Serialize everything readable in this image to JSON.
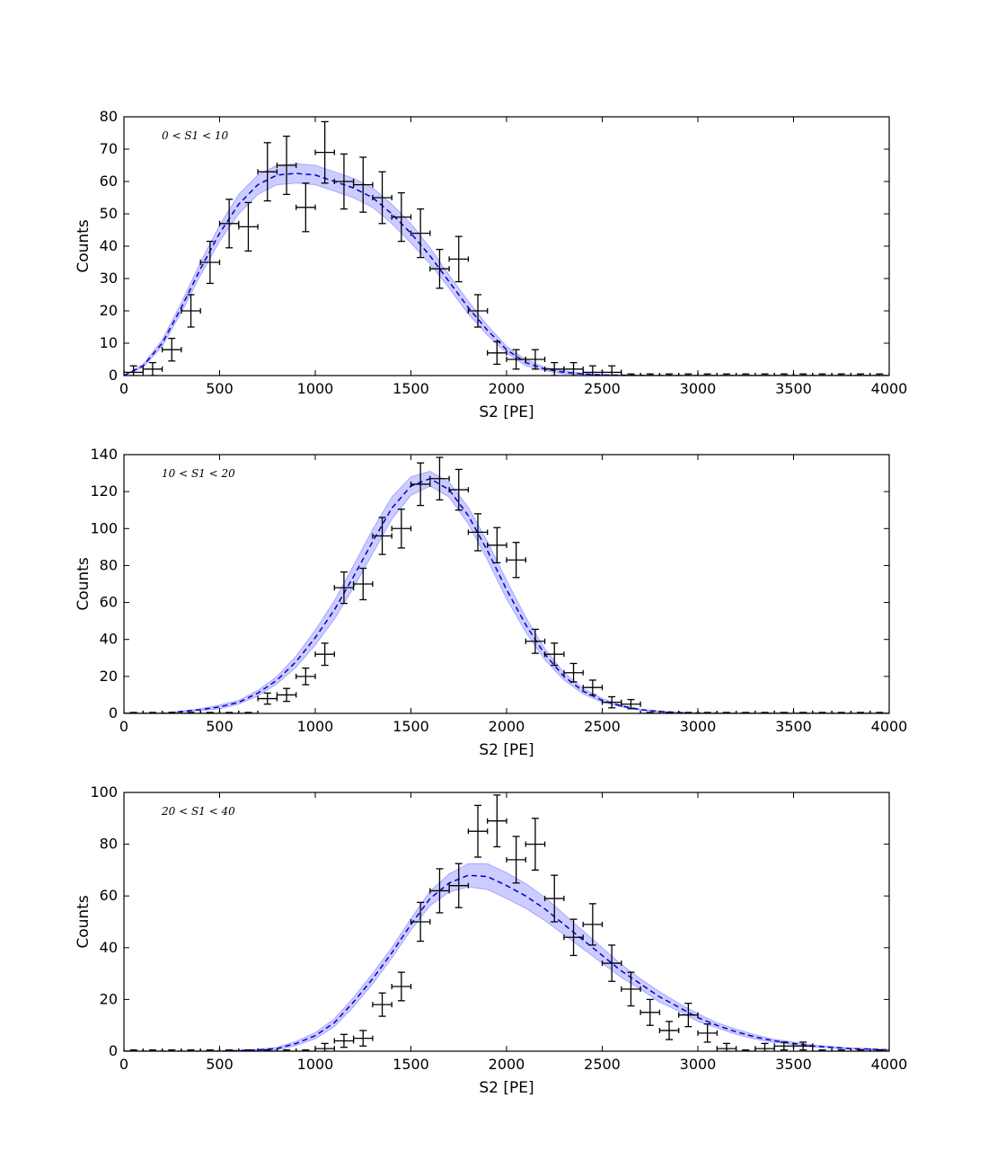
{
  "chart_data": [
    {
      "type": "scatter",
      "annotation": "0 < S1 < 10",
      "xlabel": "S2 [PE]",
      "ylabel": "Counts",
      "xlim": [
        0,
        4000
      ],
      "ylim": [
        0,
        80
      ],
      "xticks": [
        0,
        500,
        1000,
        1500,
        2000,
        2500,
        3000,
        3500,
        4000
      ],
      "yticks": [
        0,
        10,
        20,
        30,
        40,
        50,
        60,
        70,
        80
      ],
      "bin_width": 100,
      "colors": {
        "band": "#8080ff",
        "model": "#0000cc",
        "data": "#000000"
      },
      "data_points": {
        "x": [
          50,
          150,
          250,
          350,
          450,
          550,
          650,
          750,
          850,
          950,
          1050,
          1150,
          1250,
          1350,
          1450,
          1550,
          1650,
          1750,
          1850,
          1950,
          2050,
          2150,
          2250,
          2350,
          2450,
          2550,
          2650,
          2750,
          2850,
          2950,
          3050,
          3150,
          3250,
          3350,
          3450,
          3550,
          3650,
          3750,
          3850,
          3950
        ],
        "y": [
          1,
          2,
          8,
          20,
          35,
          47,
          46,
          63,
          65,
          52,
          69,
          60,
          59,
          55,
          49,
          44,
          33,
          36,
          20,
          7,
          5,
          5,
          2,
          2,
          1,
          1,
          0,
          0,
          0,
          0,
          0,
          0,
          0,
          0,
          0,
          0,
          0,
          0,
          0,
          0
        ],
        "yerr": [
          2,
          2,
          3.5,
          5,
          6.5,
          7.5,
          7.5,
          9,
          9,
          7.5,
          9.5,
          8.5,
          8.5,
          8,
          7.5,
          7.5,
          6,
          7,
          5,
          3.5,
          3,
          3,
          2,
          2,
          2,
          2,
          0.5,
          0.5,
          0.5,
          0.5,
          0.5,
          0.5,
          0.5,
          0.5,
          0.5,
          0.5,
          0.5,
          0.5,
          0.5,
          0.5
        ]
      },
      "model": {
        "x": [
          0,
          100,
          200,
          300,
          400,
          500,
          600,
          700,
          800,
          900,
          1000,
          1100,
          1200,
          1300,
          1400,
          1500,
          1600,
          1700,
          1800,
          1900,
          2000,
          2100,
          2200,
          2300,
          2400,
          2500,
          2600,
          2700,
          2800,
          2900,
          3000,
          3500,
          4000
        ],
        "y": [
          0,
          3,
          10,
          21,
          33,
          44,
          53,
          59,
          62,
          62.5,
          62,
          60,
          58,
          55,
          50,
          44,
          37,
          29,
          21,
          14,
          8,
          4,
          2,
          1,
          0.5,
          0.2,
          0.1,
          0.05,
          0,
          0,
          0,
          0,
          0
        ],
        "band": [
          0,
          0.5,
          1,
          1.5,
          2,
          2.5,
          3,
          3,
          3,
          3,
          3,
          3,
          3,
          3,
          3,
          3,
          2.5,
          2,
          2,
          1.5,
          1,
          1,
          0.5,
          0.5,
          0.2,
          0.1,
          0.1,
          0,
          0,
          0,
          0,
          0,
          0
        ]
      }
    },
    {
      "type": "scatter",
      "annotation": "10 < S1 < 20",
      "xlabel": "S2 [PE]",
      "ylabel": "Counts",
      "xlim": [
        0,
        4000
      ],
      "ylim": [
        0,
        140
      ],
      "xticks": [
        0,
        500,
        1000,
        1500,
        2000,
        2500,
        3000,
        3500,
        4000
      ],
      "yticks": [
        0,
        20,
        40,
        60,
        80,
        100,
        120,
        140
      ],
      "bin_width": 100,
      "colors": {
        "band": "#8080ff",
        "model": "#0000cc",
        "data": "#000000"
      },
      "data_points": {
        "x": [
          50,
          150,
          250,
          350,
          450,
          550,
          650,
          750,
          850,
          950,
          1050,
          1150,
          1250,
          1350,
          1450,
          1550,
          1650,
          1750,
          1850,
          1950,
          2050,
          2150,
          2250,
          2350,
          2450,
          2550,
          2650,
          2750,
          2850,
          2950,
          3050,
          3150,
          3250,
          3350,
          3450,
          3550,
          3650,
          3750,
          3850,
          3950
        ],
        "y": [
          0,
          0,
          0,
          0,
          0,
          0,
          0,
          8,
          10,
          20,
          32,
          68,
          70,
          96,
          100,
          124,
          127,
          121,
          98,
          91,
          83,
          39,
          32,
          22,
          14,
          6,
          5,
          0,
          0,
          0,
          0,
          0,
          0,
          0,
          0,
          0,
          0,
          0,
          0,
          0
        ],
        "yerr": [
          0.5,
          0.5,
          0.5,
          0.5,
          0.5,
          0.5,
          0.5,
          3,
          3.5,
          4.5,
          6,
          8.5,
          8.5,
          10,
          10.5,
          11.5,
          11.5,
          11,
          10,
          9.5,
          9.5,
          6.5,
          6,
          5,
          4,
          3,
          2.5,
          0.5,
          0.5,
          0.5,
          0.5,
          0.5,
          0.5,
          0.5,
          0.5,
          0.5,
          0.5,
          0.5,
          0.5,
          0.5
        ]
      },
      "model": {
        "x": [
          0,
          200,
          400,
          500,
          600,
          700,
          800,
          900,
          1000,
          1100,
          1200,
          1300,
          1400,
          1500,
          1600,
          1700,
          1800,
          1900,
          2000,
          2100,
          2200,
          2300,
          2400,
          2500,
          2600,
          2700,
          2800,
          2900,
          3000,
          3200,
          3500,
          4000
        ],
        "y": [
          0,
          0,
          2,
          3.5,
          6,
          11,
          18,
          28,
          41,
          56,
          74,
          93,
          111,
          123,
          127,
          121,
          107,
          88,
          67,
          48,
          32,
          20,
          12,
          7,
          4,
          2,
          1,
          0.5,
          0.2,
          0,
          0,
          0
        ],
        "band": [
          0,
          0,
          0.5,
          1,
          1,
          1.5,
          2,
          3,
          4,
          5,
          6,
          6.5,
          6,
          5,
          4,
          4,
          4.5,
          5,
          5,
          4,
          3,
          2,
          1.5,
          1,
          0.5,
          0.3,
          0.2,
          0.1,
          0,
          0,
          0,
          0
        ]
      }
    },
    {
      "type": "scatter",
      "annotation": "20 < S1 < 40",
      "xlabel": "S2 [PE]",
      "ylabel": "Counts",
      "xlim": [
        0,
        4000
      ],
      "ylim": [
        0,
        100
      ],
      "xticks": [
        0,
        500,
        1000,
        1500,
        2000,
        2500,
        3000,
        3500,
        4000
      ],
      "yticks": [
        0,
        20,
        40,
        60,
        80,
        100
      ],
      "bin_width": 100,
      "colors": {
        "band": "#8080ff",
        "model": "#0000cc",
        "data": "#000000"
      },
      "data_points": {
        "x": [
          50,
          150,
          250,
          350,
          450,
          550,
          650,
          750,
          850,
          950,
          1050,
          1150,
          1250,
          1350,
          1450,
          1550,
          1650,
          1750,
          1850,
          1950,
          2050,
          2150,
          2250,
          2350,
          2450,
          2550,
          2650,
          2750,
          2850,
          2950,
          3050,
          3150,
          3250,
          3350,
          3450,
          3550,
          3650,
          3750,
          3850,
          3950
        ],
        "y": [
          0,
          0,
          0,
          0,
          0,
          0,
          0,
          0,
          0,
          0,
          1,
          4,
          5,
          18,
          25,
          50,
          62,
          64,
          85,
          89,
          74,
          80,
          59,
          44,
          49,
          34,
          24,
          15,
          8,
          14,
          7,
          1,
          0,
          1,
          2,
          2,
          0,
          0,
          0,
          0
        ],
        "yerr": [
          0.5,
          0.5,
          0.5,
          0.5,
          0.5,
          0.5,
          0.5,
          0.5,
          0.5,
          0.5,
          2,
          2.5,
          3,
          4.5,
          5.5,
          7.5,
          8.5,
          8.5,
          10,
          10,
          9,
          10,
          9,
          7,
          8,
          7,
          6.5,
          5,
          3.5,
          4.5,
          3.5,
          2,
          0.5,
          2,
          1.5,
          1.5,
          0.5,
          0.5,
          0.5,
          0.5
        ]
      },
      "model": {
        "x": [
          0,
          500,
          700,
          800,
          900,
          1000,
          1100,
          1200,
          1300,
          1400,
          1500,
          1600,
          1700,
          1800,
          1900,
          2000,
          2100,
          2200,
          2300,
          2400,
          2500,
          2600,
          2700,
          2800,
          2900,
          3000,
          3100,
          3200,
          3300,
          3400,
          3500,
          3600,
          3700,
          3800,
          3900,
          4000
        ],
        "y": [
          0,
          0,
          0.5,
          1,
          3,
          6,
          11,
          19,
          28,
          38,
          49,
          59,
          65,
          68,
          67.5,
          64,
          60,
          55,
          49,
          43,
          37,
          31,
          26,
          21,
          17,
          13,
          10,
          7.5,
          5.5,
          4,
          3,
          2,
          1.5,
          1,
          0.8,
          0.5
        ],
        "band": [
          0,
          0,
          0.3,
          0.5,
          0.8,
          1.2,
          1.5,
          1.8,
          2,
          2,
          2.2,
          2.8,
          3.5,
          4.5,
          5,
          5,
          4.8,
          4.5,
          4,
          3.5,
          3,
          2.5,
          2,
          2,
          1.5,
          1.5,
          1,
          1,
          0.8,
          0.6,
          0.5,
          0.4,
          0.3,
          0.2,
          0.2,
          0.1
        ]
      }
    }
  ]
}
